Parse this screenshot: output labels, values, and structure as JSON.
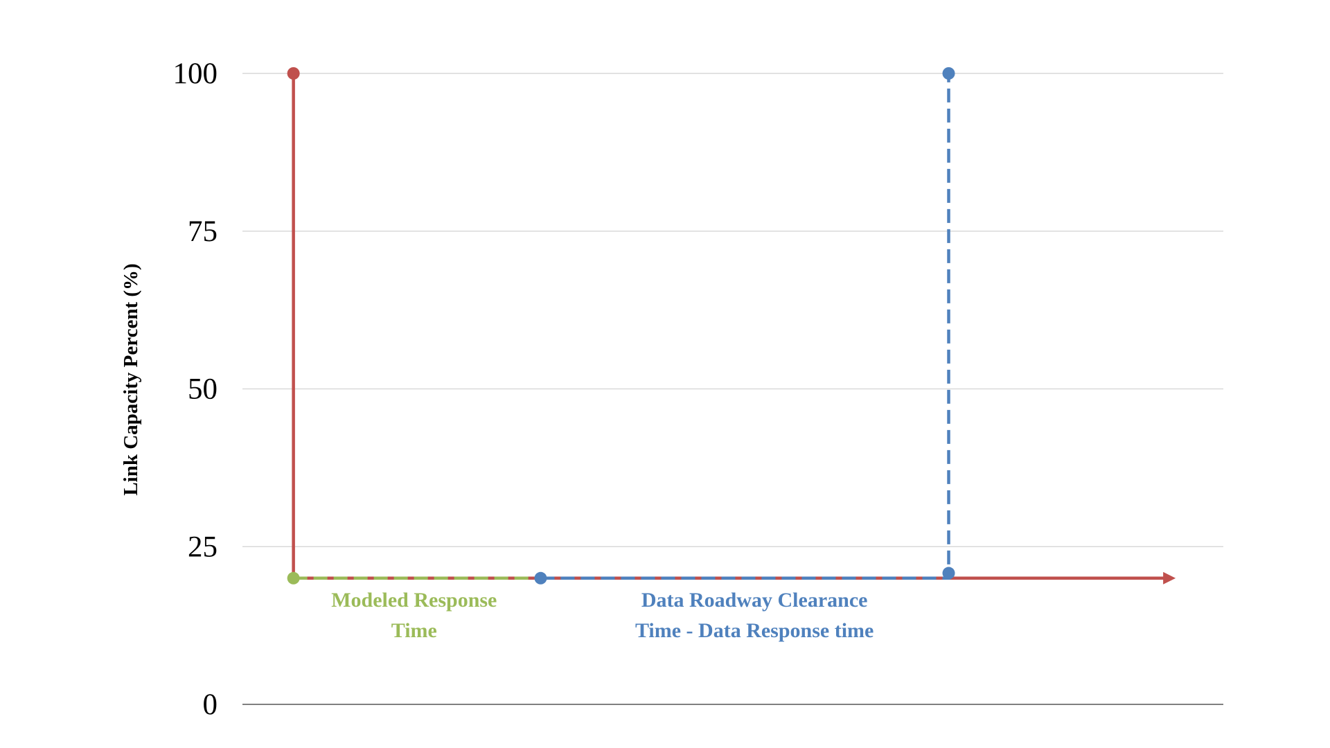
{
  "chart_data": {
    "type": "line",
    "title": "",
    "xlabel": "",
    "ylabel": "Link Capacity Percent (%)",
    "ylim": [
      0,
      100
    ],
    "yticks": [
      0,
      25,
      50,
      75,
      100
    ],
    "xlim": [
      0,
      10
    ],
    "grid": true,
    "colors": {
      "red": "#c0504d",
      "green": "#9bbb59",
      "blue": "#4f81bd",
      "grid": "#d9d9d9",
      "axis": "#808080"
    },
    "series": [
      {
        "color": "#c0504d",
        "style": "solid",
        "x": [
          0.52,
          0.52,
          2.31,
          6.5,
          9.45
        ],
        "y": [
          100,
          20,
          20,
          20,
          20
        ],
        "arrow_end": true
      },
      {
        "color": "#9bbb59",
        "style": "dashed",
        "x": [
          0.52,
          3.04
        ],
        "y": [
          20,
          20
        ]
      },
      {
        "color": "#4f81bd",
        "style": "dashed",
        "x": [
          3.04,
          7.2,
          7.2
        ],
        "y": [
          20,
          20,
          100
        ]
      }
    ],
    "markers": [
      {
        "x": 0.52,
        "y": 100,
        "color": "#c0504d"
      },
      {
        "x": 0.52,
        "y": 20,
        "color": "#9bbb59"
      },
      {
        "x": 3.04,
        "y": 20,
        "color": "#4f81bd"
      },
      {
        "x": 7.2,
        "y": 20.8,
        "color": "#4f81bd"
      },
      {
        "x": 7.2,
        "y": 100,
        "color": "#4f81bd"
      }
    ],
    "annotations": [
      {
        "lines": [
          "Modeled Response",
          "Time"
        ],
        "color": "#9bbb59",
        "x": 1.75,
        "y": 15.5
      },
      {
        "lines": [
          "Data Roadway Clearance",
          "Time -  Data Response time"
        ],
        "color": "#4f81bd",
        "x": 5.22,
        "y": 15.5
      }
    ]
  }
}
